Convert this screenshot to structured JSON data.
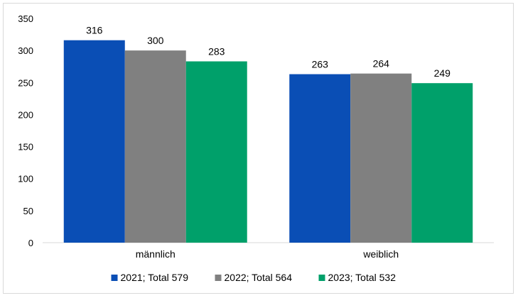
{
  "chart_data": {
    "type": "bar",
    "categories": [
      "männlich",
      "weiblich"
    ],
    "series": [
      {
        "name": "2021; Total 579",
        "values": [
          316,
          263
        ],
        "color": "#0a4eb5"
      },
      {
        "name": "2022; Total 564",
        "values": [
          300,
          264
        ],
        "color": "#808080"
      },
      {
        "name": "2023; Total 532",
        "values": [
          283,
          249
        ],
        "color": "#00a06a"
      }
    ],
    "ylim": [
      0,
      350
    ],
    "yticks": [
      "0",
      "50",
      "100",
      "150",
      "200",
      "250",
      "300",
      "350"
    ],
    "title": "",
    "xlabel": "",
    "ylabel": "",
    "grid": false,
    "legend_position": "bottom"
  }
}
